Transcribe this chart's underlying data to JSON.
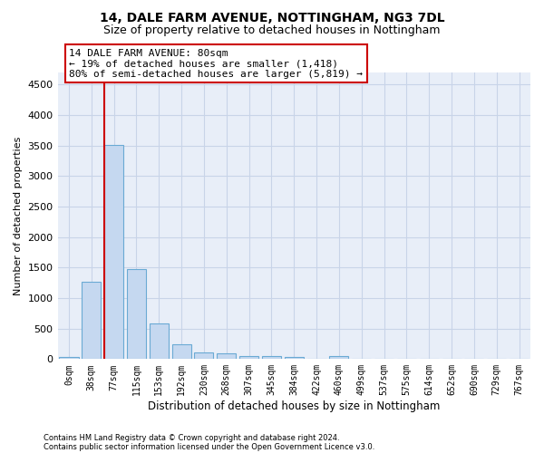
{
  "title1": "14, DALE FARM AVENUE, NOTTINGHAM, NG3 7DL",
  "title2": "Size of property relative to detached houses in Nottingham",
  "xlabel": "Distribution of detached houses by size in Nottingham",
  "ylabel": "Number of detached properties",
  "footnote1": "Contains HM Land Registry data © Crown copyright and database right 2024.",
  "footnote2": "Contains public sector information licensed under the Open Government Licence v3.0.",
  "bar_labels": [
    "0sqm",
    "38sqm",
    "77sqm",
    "115sqm",
    "153sqm",
    "192sqm",
    "230sqm",
    "268sqm",
    "307sqm",
    "345sqm",
    "384sqm",
    "422sqm",
    "460sqm",
    "499sqm",
    "537sqm",
    "575sqm",
    "614sqm",
    "652sqm",
    "690sqm",
    "729sqm",
    "767sqm"
  ],
  "bar_values": [
    30,
    1270,
    3510,
    1480,
    580,
    240,
    115,
    90,
    55,
    45,
    30,
    0,
    55,
    0,
    0,
    0,
    0,
    0,
    0,
    0,
    0
  ],
  "bar_color": "#c5d8f0",
  "bar_edge_color": "#6aaad4",
  "ylim": [
    0,
    4700
  ],
  "yticks": [
    0,
    500,
    1000,
    1500,
    2000,
    2500,
    3000,
    3500,
    4000,
    4500
  ],
  "annotation_title": "14 DALE FARM AVENUE: 80sqm",
  "annotation_line1": "← 19% of detached houses are smaller (1,418)",
  "annotation_line2": "80% of semi-detached houses are larger (5,819) →",
  "annotation_box_color": "#ffffff",
  "annotation_border_color": "#cc0000",
  "vline_color": "#cc0000",
  "background_color": "#e8eef8",
  "grid_color": "#c8d4e8",
  "vline_bin_index": 2
}
